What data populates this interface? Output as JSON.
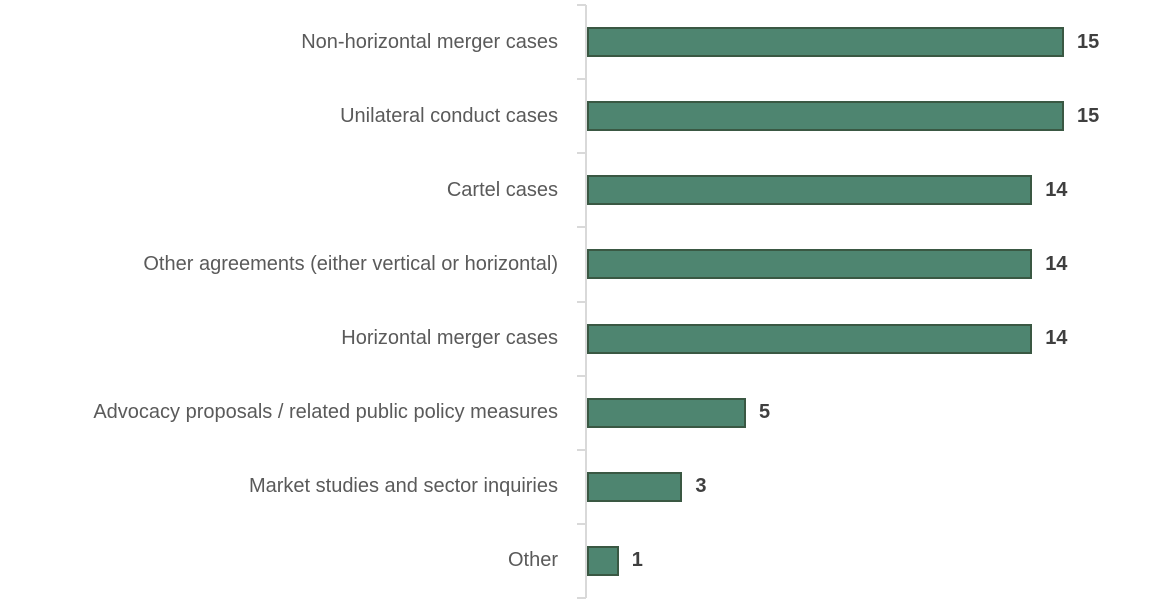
{
  "chart": {
    "background": "#FFFFFF",
    "bar_fill": "#4E8570",
    "bar_border": "#3A5843",
    "axis_color": "#D9D9D9",
    "category_label_color": "#5A5A5A",
    "value_label_color": "#3F3F3F"
  },
  "chart_data": {
    "type": "bar",
    "orientation": "horizontal",
    "title": "",
    "xlabel": "",
    "ylabel": "",
    "categories": [
      "Non-horizontal merger cases",
      "Unilateral conduct cases",
      "Cartel cases",
      "Other agreements (either vertical or horizontal)",
      "Horizontal merger cases",
      "Advocacy proposals / related public policy measures",
      "Market studies and sector inquiries",
      "Other"
    ],
    "values": [
      15,
      15,
      14,
      14,
      14,
      5,
      3,
      1
    ],
    "xlim": [
      0,
      18
    ],
    "grid": false,
    "legend": false,
    "data_labels": true,
    "value_axis_visible": false
  }
}
